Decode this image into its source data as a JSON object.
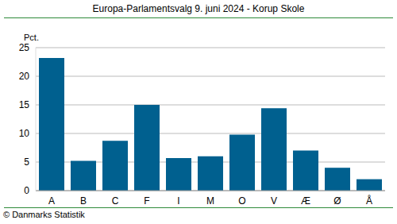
{
  "chart_data": {
    "type": "bar",
    "title": "Europa-Parlamentsvalg 9. juni 2024 - Korup Skole",
    "y_label": "Pct.",
    "source": "© Danmarks Statistik",
    "categories": [
      "A",
      "B",
      "C",
      "F",
      "I",
      "M",
      "O",
      "V",
      "Æ",
      "Ø",
      "Å"
    ],
    "values": [
      23.2,
      5.2,
      8.7,
      15.0,
      5.7,
      6.0,
      9.8,
      14.4,
      7.0,
      4.0,
      2.0
    ],
    "color": "#00608f",
    "ylim": [
      0,
      25
    ],
    "yticks": [
      0,
      5,
      10,
      15,
      20,
      25
    ],
    "grid": true
  }
}
